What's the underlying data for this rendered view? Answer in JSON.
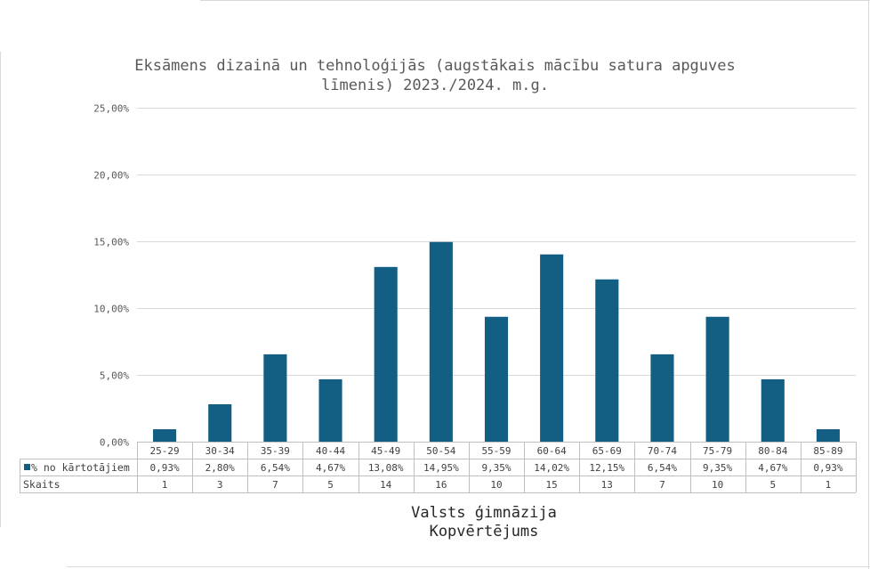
{
  "chart_data": {
    "type": "bar",
    "title_lines": [
      "Eksāmens dizainā un tehnoloģijās (augstākais mācību satura apguves",
      "līmenis) 2023./2024. m.g."
    ],
    "categories": [
      "25-29",
      "30-34",
      "35-39",
      "40-44",
      "45-49",
      "50-54",
      "55-59",
      "60-64",
      "65-69",
      "70-74",
      "75-79",
      "80-84",
      "85-89"
    ],
    "series": [
      {
        "name": "% no kārtotājiem",
        "values": [
          0.93,
          2.8,
          6.54,
          4.67,
          13.08,
          14.95,
          9.35,
          14.02,
          12.15,
          6.54,
          9.35,
          4.67,
          0.93
        ],
        "labels": [
          "0,93%",
          "2,80%",
          "6,54%",
          "4,67%",
          "13,08%",
          "14,95%",
          "9,35%",
          "14,02%",
          "12,15%",
          "6,54%",
          "9,35%",
          "4,67%",
          "0,93%"
        ],
        "color": "#135e83"
      }
    ],
    "table_rows": [
      {
        "label": "Skaits",
        "values": [
          "1",
          "3",
          "7",
          "5",
          "14",
          "16",
          "10",
          "15",
          "13",
          "7",
          "10",
          "5",
          "1"
        ]
      }
    ],
    "ylim": [
      0,
      25
    ],
    "yticks": [
      0,
      5,
      10,
      15,
      20,
      25
    ],
    "ytick_labels": [
      "0,00%",
      "5,00%",
      "10,00%",
      "15,00%",
      "20,00%",
      "25,00%"
    ],
    "xaxis_title_lines": [
      "Valsts ģimnāzija",
      "Kopvērtējums"
    ],
    "grid": true,
    "legend": "data-table"
  }
}
